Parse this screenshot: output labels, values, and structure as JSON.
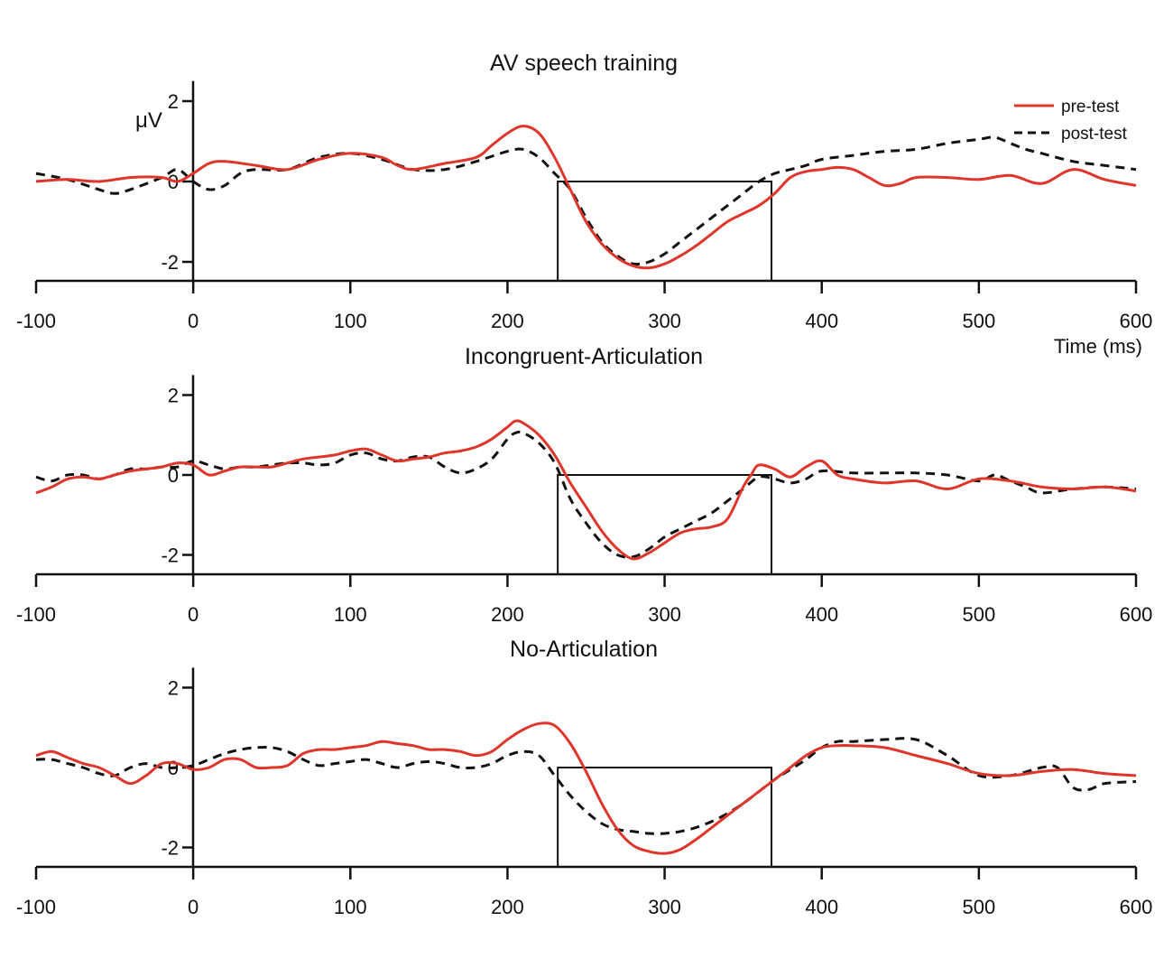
{
  "figure": {
    "xlabel": "Time (ms)",
    "ylabel": "μV",
    "legend": {
      "placement": "top-right",
      "entries": [
        "pre-test",
        "post-test"
      ]
    }
  },
  "chart_data": [
    {
      "type": "line",
      "title": "AV speech training",
      "xlim": [
        -100,
        600
      ],
      "ylim": [
        -2.5,
        2.5
      ],
      "xticks": [
        -100,
        0,
        100,
        200,
        300,
        400,
        500,
        600
      ],
      "yticks": [
        -2,
        0,
        2
      ],
      "window": {
        "x": [
          232,
          368
        ],
        "y": [
          -2.5,
          0
        ]
      },
      "series": [
        {
          "name": "pre-test",
          "color": "#e0352b",
          "style": "solid",
          "x": [
            -100,
            -80,
            -60,
            -40,
            -20,
            -10,
            0,
            10,
            20,
            40,
            60,
            80,
            100,
            120,
            130,
            140,
            160,
            180,
            190,
            200,
            210,
            220,
            230,
            240,
            250,
            260,
            270,
            280,
            290,
            300,
            310,
            320,
            330,
            340,
            350,
            360,
            370,
            380,
            390,
            400,
            410,
            420,
            430,
            440,
            450,
            460,
            480,
            500,
            520,
            540,
            560,
            580,
            600
          ],
          "y": [
            0.0,
            0.05,
            0.0,
            0.1,
            0.1,
            0.0,
            0.2,
            0.45,
            0.5,
            0.4,
            0.3,
            0.55,
            0.7,
            0.6,
            0.4,
            0.3,
            0.45,
            0.6,
            0.9,
            1.2,
            1.38,
            1.2,
            0.6,
            -0.2,
            -1.0,
            -1.55,
            -1.9,
            -2.1,
            -2.15,
            -2.05,
            -1.85,
            -1.6,
            -1.3,
            -1.0,
            -0.8,
            -0.6,
            -0.3,
            0.1,
            0.25,
            0.3,
            0.35,
            0.3,
            0.1,
            -0.1,
            -0.05,
            0.1,
            0.1,
            0.05,
            0.15,
            -0.05,
            0.3,
            0.05,
            -0.1
          ]
        },
        {
          "name": "post-test",
          "color": "#111111",
          "style": "dashed",
          "x": [
            -100,
            -80,
            -60,
            -50,
            -40,
            -20,
            -10,
            0,
            10,
            20,
            30,
            40,
            60,
            80,
            100,
            120,
            140,
            160,
            180,
            200,
            210,
            220,
            230,
            240,
            250,
            260,
            270,
            280,
            290,
            300,
            310,
            320,
            330,
            340,
            350,
            360,
            370,
            380,
            390,
            400,
            420,
            440,
            460,
            480,
            500,
            510,
            520,
            530,
            540,
            560,
            580,
            600
          ],
          "y": [
            0.2,
            0.05,
            -0.2,
            -0.3,
            -0.2,
            0.1,
            0.3,
            0.0,
            -0.2,
            -0.1,
            0.2,
            0.3,
            0.3,
            0.6,
            0.7,
            0.55,
            0.3,
            0.3,
            0.5,
            0.75,
            0.8,
            0.6,
            0.2,
            -0.2,
            -0.9,
            -1.5,
            -1.85,
            -2.05,
            -2.0,
            -1.8,
            -1.5,
            -1.2,
            -0.9,
            -0.6,
            -0.3,
            0.0,
            0.2,
            0.3,
            0.4,
            0.55,
            0.65,
            0.75,
            0.8,
            0.95,
            1.05,
            1.1,
            0.95,
            0.8,
            0.7,
            0.5,
            0.4,
            0.3
          ]
        }
      ]
    },
    {
      "type": "line",
      "title": "Incongruent-Articulation",
      "xlim": [
        -100,
        600
      ],
      "ylim": [
        -2.5,
        2.5
      ],
      "xticks": [
        -100,
        0,
        100,
        200,
        300,
        400,
        500,
        600
      ],
      "yticks": [
        -2,
        0,
        2
      ],
      "window": {
        "x": [
          232,
          368
        ],
        "y": [
          -2.5,
          0
        ]
      },
      "series": [
        {
          "name": "pre-test",
          "color": "#e0352b",
          "style": "solid",
          "x": [
            -100,
            -90,
            -80,
            -70,
            -60,
            -50,
            -40,
            -30,
            -20,
            -10,
            0,
            10,
            20,
            30,
            40,
            50,
            60,
            70,
            80,
            90,
            100,
            110,
            120,
            130,
            140,
            150,
            160,
            170,
            180,
            190,
            200,
            205,
            210,
            220,
            230,
            240,
            250,
            260,
            270,
            280,
            290,
            300,
            310,
            320,
            330,
            340,
            350,
            355,
            360,
            370,
            380,
            390,
            400,
            410,
            420,
            440,
            460,
            480,
            500,
            520,
            540,
            560,
            580,
            600
          ],
          "y": [
            -0.45,
            -0.3,
            -0.1,
            -0.05,
            -0.1,
            0.0,
            0.1,
            0.15,
            0.2,
            0.3,
            0.25,
            0.0,
            0.1,
            0.2,
            0.2,
            0.2,
            0.3,
            0.4,
            0.45,
            0.5,
            0.6,
            0.65,
            0.5,
            0.35,
            0.4,
            0.45,
            0.55,
            0.6,
            0.7,
            0.9,
            1.2,
            1.35,
            1.3,
            1.0,
            0.5,
            -0.2,
            -0.8,
            -1.4,
            -1.85,
            -2.1,
            -1.95,
            -1.7,
            -1.45,
            -1.35,
            -1.3,
            -1.1,
            -0.3,
            0.0,
            0.25,
            0.15,
            -0.05,
            0.2,
            0.35,
            0.0,
            -0.1,
            -0.2,
            -0.15,
            -0.35,
            -0.1,
            -0.15,
            -0.3,
            -0.35,
            -0.3,
            -0.4
          ]
        },
        {
          "name": "post-test",
          "color": "#111111",
          "style": "dashed",
          "x": [
            -100,
            -90,
            -80,
            -70,
            -60,
            -50,
            -40,
            -30,
            -20,
            -10,
            0,
            10,
            20,
            30,
            40,
            50,
            60,
            70,
            80,
            90,
            100,
            110,
            120,
            130,
            140,
            150,
            160,
            170,
            180,
            190,
            200,
            205,
            210,
            220,
            230,
            240,
            250,
            260,
            270,
            280,
            290,
            300,
            310,
            320,
            330,
            340,
            350,
            360,
            370,
            380,
            390,
            400,
            420,
            440,
            460,
            480,
            500,
            510,
            520,
            530,
            540,
            560,
            580,
            600
          ],
          "y": [
            -0.05,
            -0.15,
            0.0,
            0.0,
            -0.1,
            0.0,
            0.15,
            0.15,
            0.2,
            0.2,
            0.35,
            0.25,
            0.15,
            0.2,
            0.2,
            0.25,
            0.3,
            0.3,
            0.25,
            0.3,
            0.5,
            0.55,
            0.4,
            0.35,
            0.45,
            0.45,
            0.2,
            0.05,
            0.15,
            0.4,
            0.9,
            1.05,
            1.05,
            0.8,
            0.3,
            -0.6,
            -1.2,
            -1.7,
            -2.0,
            -2.05,
            -1.85,
            -1.55,
            -1.35,
            -1.15,
            -0.95,
            -0.65,
            -0.35,
            -0.05,
            -0.1,
            -0.2,
            -0.1,
            0.1,
            0.05,
            0.05,
            0.05,
            0.0,
            -0.15,
            0.0,
            -0.15,
            -0.3,
            -0.45,
            -0.35,
            -0.3,
            -0.35
          ]
        }
      ]
    },
    {
      "type": "line",
      "title": "No-Articulation",
      "xlim": [
        -100,
        600
      ],
      "ylim": [
        -2.5,
        2.5
      ],
      "xticks": [
        -100,
        0,
        100,
        200,
        300,
        400,
        500,
        600
      ],
      "yticks": [
        -2,
        0,
        2
      ],
      "window": {
        "x": [
          232,
          368
        ],
        "y": [
          -2.5,
          0
        ]
      },
      "series": [
        {
          "name": "pre-test",
          "color": "#e0352b",
          "style": "solid",
          "x": [
            -100,
            -90,
            -80,
            -70,
            -60,
            -50,
            -40,
            -30,
            -20,
            -10,
            0,
            10,
            20,
            30,
            40,
            50,
            60,
            70,
            80,
            90,
            100,
            110,
            120,
            130,
            140,
            150,
            160,
            170,
            180,
            190,
            200,
            210,
            220,
            230,
            240,
            250,
            260,
            270,
            280,
            290,
            300,
            310,
            320,
            330,
            340,
            350,
            360,
            370,
            380,
            390,
            400,
            410,
            420,
            440,
            460,
            480,
            500,
            520,
            540,
            560,
            580,
            600
          ],
          "y": [
            0.3,
            0.4,
            0.25,
            0.1,
            0.0,
            -0.2,
            -0.4,
            -0.2,
            0.1,
            0.1,
            -0.05,
            0.0,
            0.2,
            0.2,
            0.0,
            0.0,
            0.05,
            0.35,
            0.45,
            0.45,
            0.5,
            0.55,
            0.65,
            0.6,
            0.55,
            0.45,
            0.45,
            0.4,
            0.3,
            0.4,
            0.7,
            0.95,
            1.1,
            1.05,
            0.6,
            -0.1,
            -0.9,
            -1.55,
            -1.95,
            -2.1,
            -2.15,
            -2.05,
            -1.8,
            -1.5,
            -1.2,
            -0.9,
            -0.6,
            -0.3,
            0.0,
            0.3,
            0.5,
            0.55,
            0.55,
            0.5,
            0.3,
            0.1,
            -0.15,
            -0.2,
            -0.1,
            -0.05,
            -0.15,
            -0.2
          ]
        },
        {
          "name": "post-test",
          "color": "#111111",
          "style": "dashed",
          "x": [
            -100,
            -90,
            -80,
            -70,
            -60,
            -50,
            -40,
            -30,
            -20,
            -10,
            0,
            10,
            20,
            30,
            40,
            50,
            60,
            70,
            80,
            90,
            100,
            110,
            120,
            130,
            140,
            150,
            160,
            170,
            180,
            190,
            200,
            210,
            220,
            230,
            240,
            250,
            260,
            270,
            280,
            290,
            300,
            310,
            320,
            330,
            340,
            350,
            360,
            370,
            380,
            390,
            400,
            410,
            420,
            440,
            460,
            480,
            500,
            520,
            540,
            550,
            560,
            570,
            580,
            600
          ],
          "y": [
            0.2,
            0.2,
            0.1,
            0.0,
            -0.15,
            -0.2,
            0.0,
            0.1,
            0.0,
            0.0,
            0.05,
            0.2,
            0.35,
            0.45,
            0.5,
            0.5,
            0.4,
            0.2,
            0.05,
            0.1,
            0.15,
            0.2,
            0.1,
            0.0,
            0.1,
            0.15,
            0.1,
            0.0,
            0.0,
            0.1,
            0.3,
            0.4,
            0.3,
            -0.2,
            -0.7,
            -1.1,
            -1.4,
            -1.55,
            -1.6,
            -1.65,
            -1.65,
            -1.6,
            -1.5,
            -1.35,
            -1.15,
            -0.9,
            -0.6,
            -0.3,
            -0.05,
            0.2,
            0.5,
            0.65,
            0.65,
            0.7,
            0.7,
            0.3,
            -0.2,
            -0.2,
            0.0,
            0.0,
            -0.5,
            -0.55,
            -0.4,
            -0.35
          ]
        }
      ]
    }
  ]
}
